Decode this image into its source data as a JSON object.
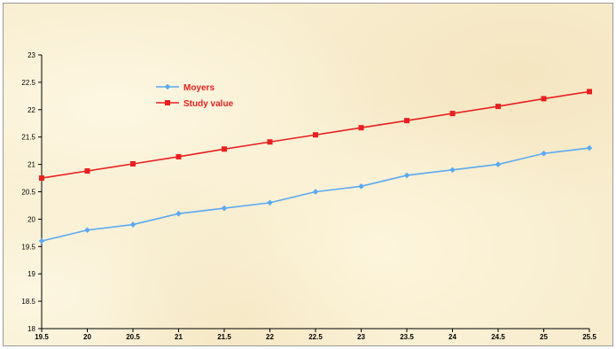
{
  "chart_data": {
    "type": "line",
    "title": "",
    "xlabel": "",
    "ylabel": "",
    "x": [
      19.5,
      20,
      20.5,
      21,
      21.5,
      22,
      22.5,
      23,
      23.5,
      24,
      24.5,
      25,
      25.5
    ],
    "x_tick_labels": [
      "19.5",
      "20",
      "20.5",
      "21",
      "21.5",
      "22",
      "22.5",
      "23",
      "23.5",
      "24",
      "24.5",
      "25",
      "25.5"
    ],
    "y_tick_labels": [
      "18",
      "18.5",
      "19",
      "19.5",
      "20",
      "20.5",
      "21",
      "21.5",
      "22",
      "22.5",
      "23"
    ],
    "ylim": [
      18,
      23
    ],
    "xlim": [
      19.5,
      25.5
    ],
    "grid": false,
    "legend_position": "top-left",
    "series": [
      {
        "name": "Moyers",
        "color": "#5aa9f2",
        "marker": "diamond",
        "values": [
          19.6,
          19.8,
          19.9,
          20.1,
          20.2,
          20.3,
          20.5,
          20.6,
          20.8,
          20.9,
          21.0,
          21.2,
          21.3
        ]
      },
      {
        "name": "Study value",
        "color": "#e82020",
        "marker": "square",
        "values": [
          20.75,
          20.88,
          21.01,
          21.14,
          21.28,
          21.41,
          21.54,
          21.67,
          21.8,
          21.93,
          22.06,
          22.2,
          22.33
        ]
      }
    ]
  }
}
